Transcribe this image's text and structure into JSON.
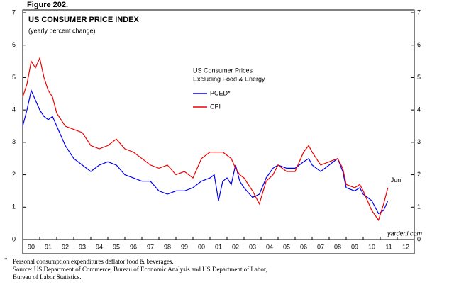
{
  "figure_label": "Figure 202.",
  "chart_data": {
    "type": "line",
    "title": "US CONSUMER PRICE INDEX",
    "subtitle": "(yearly percent change)",
    "legend_title": [
      "US Consumer Prices",
      "Excluding Food & Energy"
    ],
    "annotation": "Jun",
    "source_mark": "yardeni.com",
    "x": [
      1990.0,
      1990.25,
      1990.5,
      1990.75,
      1991.0,
      1991.25,
      1991.5,
      1991.75,
      1992.0,
      1992.5,
      1993.0,
      1993.5,
      1994.0,
      1994.5,
      1995.0,
      1995.5,
      1996.0,
      1996.5,
      1997.0,
      1997.5,
      1998.0,
      1998.5,
      1999.0,
      1999.5,
      2000.0,
      2000.5,
      2001.0,
      2001.25,
      2001.5,
      2001.75,
      2002.0,
      2002.25,
      2002.5,
      2002.75,
      2003.0,
      2003.5,
      2003.9,
      2004.3,
      2004.7,
      2005.0,
      2005.5,
      2006.0,
      2006.5,
      2006.8,
      2007.0,
      2007.5,
      2008.0,
      2008.5,
      2008.8,
      2009.0,
      2009.5,
      2009.8,
      2010.0,
      2010.5,
      2010.9,
      2011.2,
      2011.45
    ],
    "series": [
      {
        "name": "PCED*",
        "color": "#0000ee",
        "values": [
          3.5,
          4.0,
          4.6,
          4.3,
          4.0,
          3.8,
          3.7,
          3.8,
          3.5,
          2.9,
          2.5,
          2.3,
          2.1,
          2.3,
          2.4,
          2.3,
          2.0,
          1.9,
          1.8,
          1.8,
          1.5,
          1.4,
          1.5,
          1.5,
          1.6,
          1.8,
          1.9,
          2.0,
          1.2,
          1.8,
          1.9,
          1.7,
          2.3,
          1.8,
          1.6,
          1.3,
          1.4,
          1.9,
          2.2,
          2.3,
          2.2,
          2.2,
          2.4,
          2.5,
          2.3,
          2.1,
          2.3,
          2.5,
          2.1,
          1.6,
          1.5,
          1.6,
          1.4,
          1.2,
          0.8,
          0.9,
          1.2
        ]
      },
      {
        "name": "CPI",
        "color": "#ee0000",
        "values": [
          4.4,
          4.8,
          5.5,
          5.3,
          5.6,
          5.0,
          4.6,
          4.4,
          3.9,
          3.5,
          3.4,
          3.3,
          2.9,
          2.8,
          2.9,
          3.1,
          2.8,
          2.7,
          2.5,
          2.3,
          2.2,
          2.3,
          2.0,
          2.1,
          1.9,
          2.5,
          2.7,
          2.7,
          2.7,
          2.7,
          2.6,
          2.5,
          2.2,
          2.0,
          1.9,
          1.5,
          1.1,
          1.8,
          2.0,
          2.3,
          2.1,
          2.1,
          2.7,
          2.9,
          2.7,
          2.3,
          2.4,
          2.5,
          2.2,
          1.7,
          1.6,
          1.7,
          1.5,
          0.9,
          0.6,
          1.1,
          1.6
        ]
      }
    ],
    "xlim": [
      1990,
      2013
    ],
    "xticks": [
      {
        "value": 1990,
        "label": "90"
      },
      {
        "value": 1991,
        "label": "91"
      },
      {
        "value": 1992,
        "label": "92"
      },
      {
        "value": 1993,
        "label": "93"
      },
      {
        "value": 1994,
        "label": "94"
      },
      {
        "value": 1995,
        "label": "95"
      },
      {
        "value": 1996,
        "label": "96"
      },
      {
        "value": 1997,
        "label": "97"
      },
      {
        "value": 1998,
        "label": "98"
      },
      {
        "value": 1999,
        "label": "99"
      },
      {
        "value": 2000,
        "label": "00"
      },
      {
        "value": 2001,
        "label": "01"
      },
      {
        "value": 2002,
        "label": "02"
      },
      {
        "value": 2003,
        "label": "03"
      },
      {
        "value": 2004,
        "label": "04"
      },
      {
        "value": 2005,
        "label": "05"
      },
      {
        "value": 2006,
        "label": "06"
      },
      {
        "value": 2007,
        "label": "07"
      },
      {
        "value": 2008,
        "label": "08"
      },
      {
        "value": 2009,
        "label": "09"
      },
      {
        "value": 2010,
        "label": "10"
      },
      {
        "value": 2011,
        "label": "11"
      },
      {
        "value": 2012,
        "label": "12"
      }
    ],
    "ylim": [
      0,
      7
    ],
    "yticks": [
      0,
      1,
      2,
      3,
      4,
      5,
      6,
      7
    ],
    "grid": false
  },
  "footnote": {
    "marker": "*",
    "lines": [
      "Personal consumption expenditures deflator food & beverages.",
      "Source: US Department of Commerce, Bureau of Economic Analysis and US Department of Labor,",
      "Bureau of Labor Statistics."
    ]
  }
}
